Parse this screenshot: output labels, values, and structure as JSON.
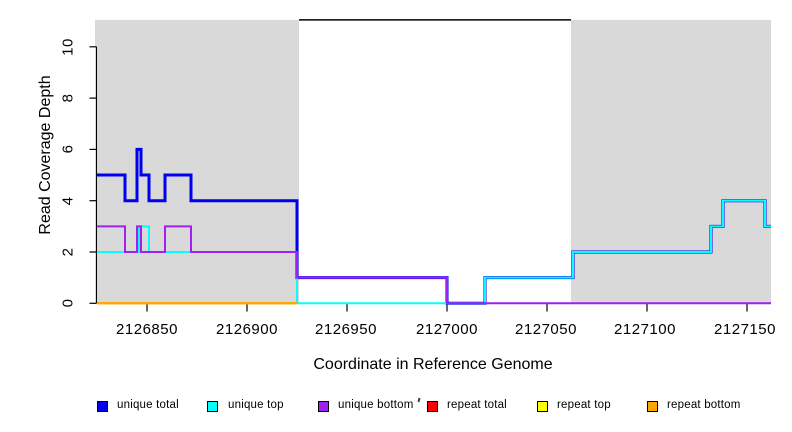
{
  "chart_data": {
    "type": "line",
    "subtype": "step-coverage",
    "title": "",
    "xlabel": "Coordinate in Reference Genome",
    "ylabel": "Read Coverage Depth",
    "xlim": [
      2126825,
      2127162
    ],
    "ylim": [
      0,
      11.2
    ],
    "grid": false,
    "x_ticks": [
      2126850,
      2126900,
      2126950,
      2127000,
      2127050,
      2127100,
      2127150
    ],
    "x_tick_labels": [
      "2126850",
      "2126900",
      "2126950",
      "2127000",
      "2127050",
      "2127100",
      "2127150"
    ],
    "y_ticks": [
      0,
      2,
      4,
      6,
      8,
      10
    ],
    "y_tick_labels": [
      "0",
      "2",
      "4",
      "6",
      "8",
      "10"
    ],
    "shade_color": "#d9d9d9",
    "shade_top": 11.05,
    "shaded_regions": [
      {
        "x0": 2126824,
        "x1": 2126926
      },
      {
        "x0": 2127062,
        "x1": 2127162
      }
    ],
    "top_boundary_line": {
      "x0": 2126926,
      "x1": 2127062,
      "y": 11.05,
      "color": "#000000"
    },
    "axis_color": "#000000",
    "series": [
      {
        "name": "unique total",
        "color": "#0000ee",
        "width": 3,
        "x_end": 2127162,
        "steps": [
          [
            2126825,
            5
          ],
          [
            2126839,
            4
          ],
          [
            2126845,
            6
          ],
          [
            2126847,
            5
          ],
          [
            2126851,
            4
          ],
          [
            2126859,
            5
          ],
          [
            2126872,
            4
          ],
          [
            2126925,
            1
          ],
          [
            2127000,
            0
          ],
          [
            2127019,
            1
          ],
          [
            2127063,
            2
          ],
          [
            2127132,
            3
          ],
          [
            2127138,
            4
          ],
          [
            2127159,
            3
          ]
        ]
      },
      {
        "name": "unique top",
        "color": "#00ffff",
        "width": 2,
        "x_end": 2127162,
        "steps": [
          [
            2126825,
            2
          ],
          [
            2126846,
            3
          ],
          [
            2126851,
            2
          ],
          [
            2126925,
            0
          ],
          [
            2127019,
            1
          ],
          [
            2127063,
            2
          ],
          [
            2127132,
            3
          ],
          [
            2127138,
            4
          ],
          [
            2127159,
            3
          ]
        ]
      },
      {
        "name": "unique bottom",
        "color": "#a020f0",
        "width": 2,
        "x_end": 2127162,
        "steps": [
          [
            2126825,
            3
          ],
          [
            2126839,
            2
          ],
          [
            2126845,
            3
          ],
          [
            2126847,
            2
          ],
          [
            2126859,
            3
          ],
          [
            2126872,
            2
          ],
          [
            2126925,
            1
          ],
          [
            2127000,
            0
          ]
        ]
      },
      {
        "name": "repeat total",
        "color": "#ff0000",
        "width": 2,
        "x_end": 2126925,
        "steps": [
          [
            2126825,
            0
          ]
        ]
      },
      {
        "name": "repeat top",
        "color": "#ffff00",
        "width": 2,
        "x_end": 2126925,
        "steps": [
          [
            2126825,
            0
          ]
        ]
      },
      {
        "name": "repeat bottom",
        "color": "#ffa500",
        "width": 2,
        "x_end": 2126925,
        "steps": [
          [
            2126825,
            0
          ]
        ]
      }
    ]
  },
  "legend": {
    "items": [
      {
        "label": "unique total",
        "color": "#0000ee"
      },
      {
        "label": "unique top",
        "color": "#00ffff"
      },
      {
        "label": "unique bottom",
        "color": "#a020f0"
      },
      {
        "label": "repeat total",
        "color": "#ff0000"
      },
      {
        "label": "repeat top",
        "color": "#ffff00"
      },
      {
        "label": "repeat bottom",
        "color": "#ffa500"
      }
    ],
    "stray_mark": "`"
  }
}
